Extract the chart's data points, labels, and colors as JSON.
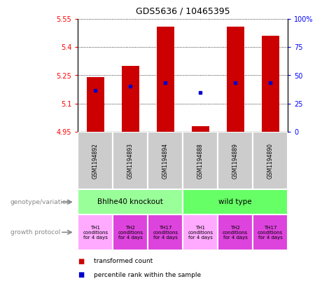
{
  "title": "GDS5636 / 10465395",
  "samples": [
    "GSM1194892",
    "GSM1194893",
    "GSM1194894",
    "GSM1194888",
    "GSM1194889",
    "GSM1194890"
  ],
  "bar_bottoms": [
    4.95,
    4.95,
    4.95,
    4.95,
    4.95,
    4.95
  ],
  "bar_tops": [
    5.24,
    5.3,
    5.51,
    4.98,
    5.51,
    5.46
  ],
  "blue_dot_y": [
    5.17,
    5.19,
    5.21,
    5.16,
    5.21,
    5.21
  ],
  "blue_dot_visible": [
    true,
    true,
    true,
    true,
    true,
    true
  ],
  "ylim": [
    4.95,
    5.55
  ],
  "yticks_left": [
    4.95,
    5.1,
    5.25,
    5.4,
    5.55
  ],
  "yticks_right": [
    0,
    25,
    50,
    75,
    100
  ],
  "ytick_labels_right": [
    "0",
    "25",
    "50",
    "75",
    "100%"
  ],
  "bar_color": "#cc0000",
  "dot_color": "#0000cc",
  "genotype_groups": [
    {
      "label": "Bhlhe40 knockout",
      "start": 0,
      "end": 3,
      "color": "#99ff99"
    },
    {
      "label": "wild type",
      "start": 3,
      "end": 6,
      "color": "#66ff66"
    }
  ],
  "prot_labels": [
    "TH1\nconditions\nfor 4 days",
    "TH2\nconditions\nfor 4 days",
    "TH17\nconditions\nfor 4 days",
    "TH1\nconditions\nfor 4 days",
    "TH2\nconditions\nfor 4 days",
    "TH17\nconditions\nfor 4 days"
  ],
  "prot_colors": [
    "#ffaaff",
    "#dd44dd",
    "#dd44dd",
    "#ffaaff",
    "#dd44dd",
    "#dd44dd"
  ],
  "legend_red_label": "transformed count",
  "legend_blue_label": "percentile rank within the sample",
  "left_label": "genotype/variation",
  "left_label2": "growth protocol",
  "sample_box_color": "#cccccc",
  "bar_width": 0.5
}
